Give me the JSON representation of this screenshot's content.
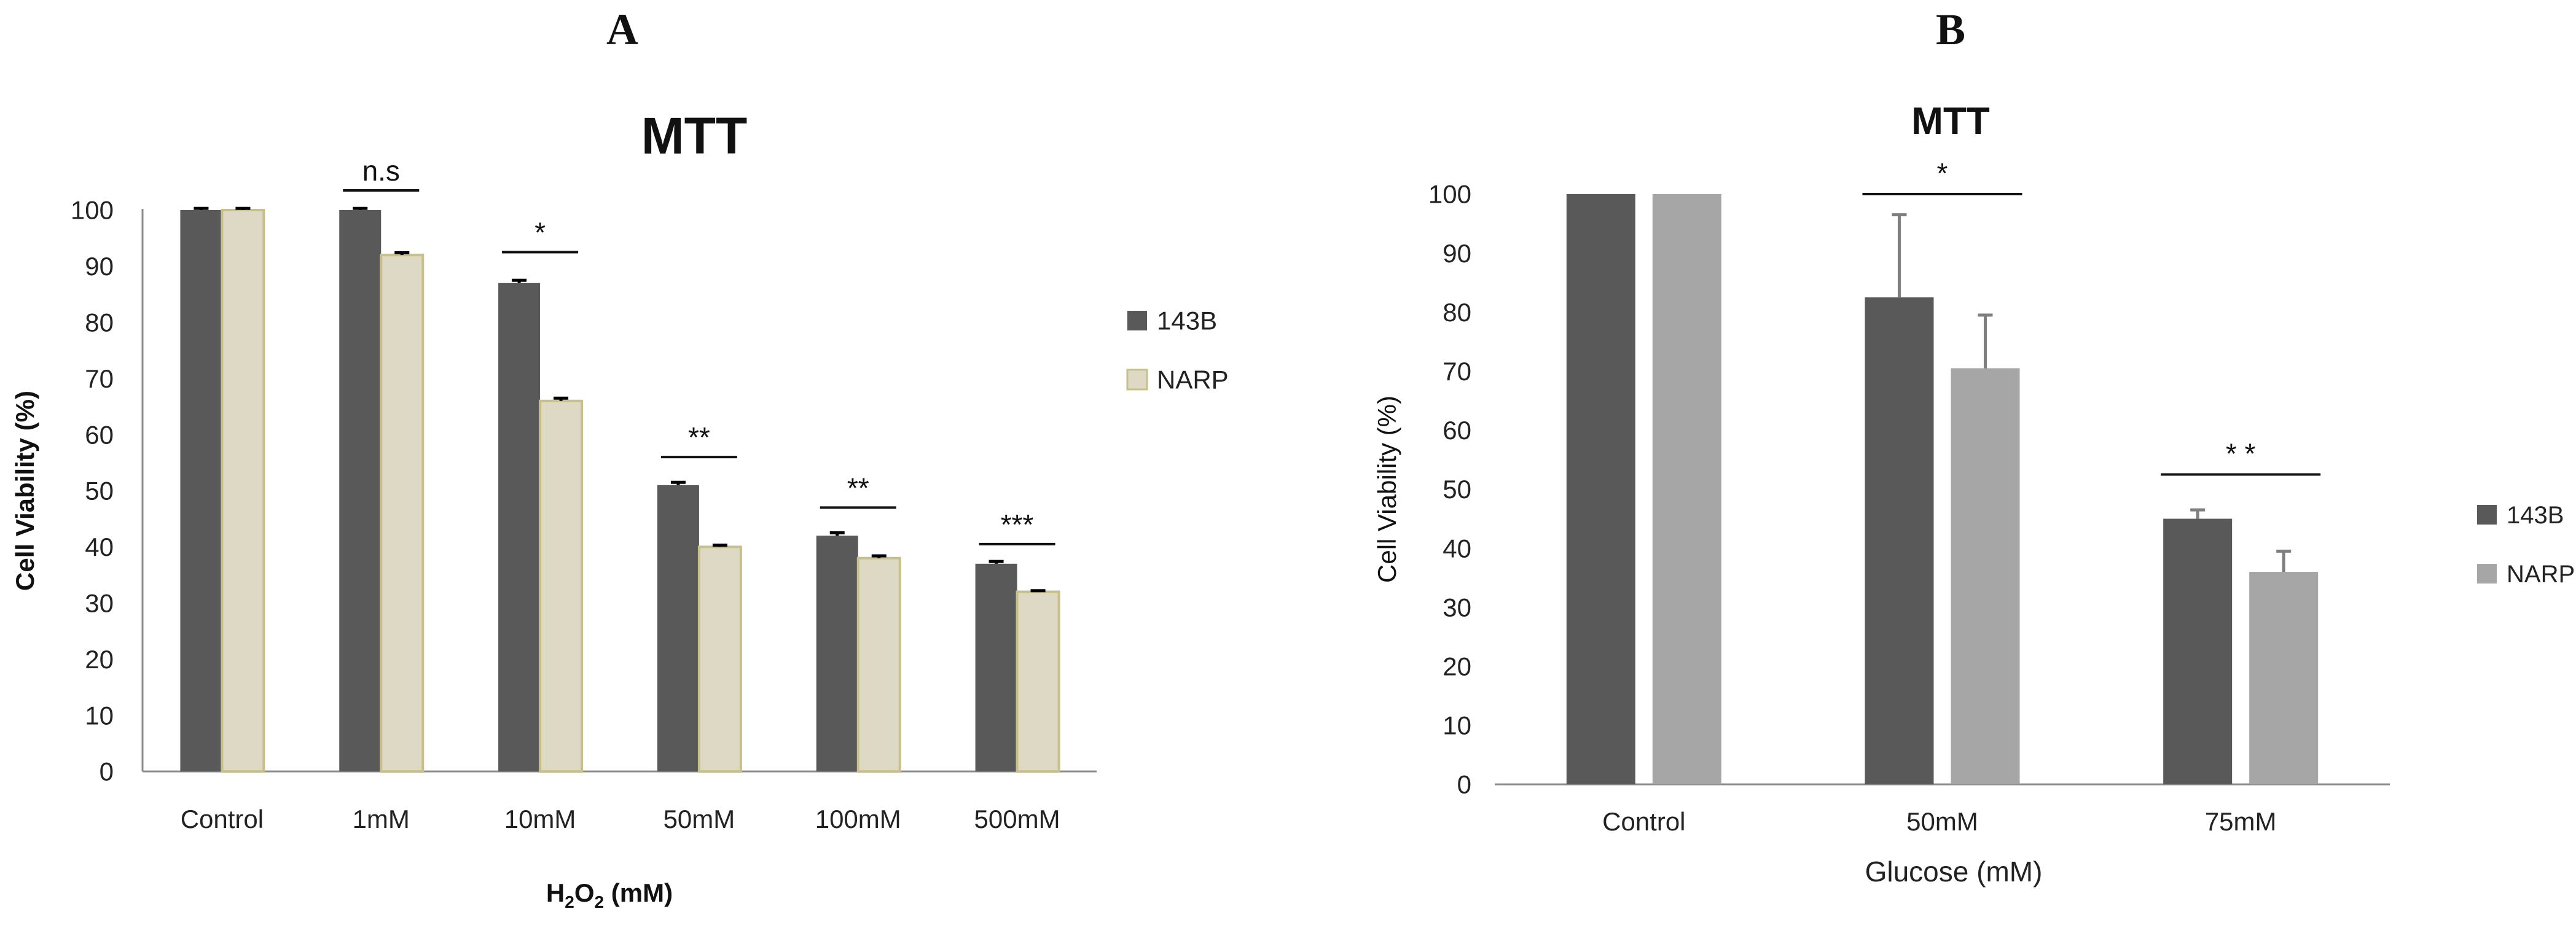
{
  "panels": {
    "a": {
      "label": "A"
    },
    "b": {
      "label": "B"
    }
  },
  "chart_data": [
    {
      "type": "bar",
      "title": "MTT",
      "xlabel_main": "H",
      "xlabel_sub": "2",
      "xlabel_main2": "O",
      "xlabel_sub2": "2",
      "xlabel_tail": " (mM)",
      "ylabel": "Cell Viability (%)",
      "ylim": [
        0,
        100
      ],
      "yticks": [
        0,
        10,
        20,
        30,
        40,
        50,
        60,
        70,
        80,
        90,
        100
      ],
      "categories": [
        "Control",
        "1mM",
        "10mM",
        "50mM",
        "100mM",
        "500mM"
      ],
      "series": [
        {
          "name": "143B",
          "values": [
            100,
            100,
            87,
            51,
            42,
            37
          ],
          "errors": [
            0.3,
            0.3,
            0.5,
            0.5,
            0.5,
            0.4
          ]
        },
        {
          "name": "NARP",
          "values": [
            100,
            92,
            66,
            40,
            38,
            32
          ],
          "errors": [
            0.3,
            0.4,
            0.5,
            0.3,
            0.4,
            0.2
          ]
        }
      ],
      "colors": {
        "143B": "#595959",
        "NARP": "#ddd9c4",
        "NARP_edge": "#c8c08a"
      },
      "significance": [
        {
          "category": "1mM",
          "label": "n.s",
          "y": 103.5
        },
        {
          "category": "10mM",
          "label": "*",
          "y": 92.5
        },
        {
          "category": "50mM",
          "label": "**",
          "y": 56
        },
        {
          "category": "100mM",
          "label": "**",
          "y": 47
        },
        {
          "category": "500mM",
          "label": "***",
          "y": 40.5
        }
      ],
      "legend_position": "right",
      "grid": false
    },
    {
      "type": "bar",
      "title": "MTT",
      "xlabel": "Glucose (mM)",
      "ylabel": "Cell Viability (%)",
      "ylim": [
        0,
        100
      ],
      "yticks": [
        0,
        10,
        20,
        30,
        40,
        50,
        60,
        70,
        80,
        90,
        100
      ],
      "categories": [
        "Control",
        "50mM",
        "75mM"
      ],
      "series": [
        {
          "name": "143B",
          "values": [
            100,
            82.5,
            45
          ],
          "errors": [
            0,
            14,
            1.5
          ]
        },
        {
          "name": "NARP",
          "values": [
            100,
            70.5,
            36
          ],
          "errors": [
            0,
            9,
            3.5
          ]
        }
      ],
      "colors": {
        "143B": "#595959",
        "NARP": "#a6a6a6"
      },
      "significance": [
        {
          "category": "50mM",
          "label": "*",
          "y": 100
        },
        {
          "category": "75mM",
          "label": "* *",
          "y": 52.5
        }
      ],
      "legend_position": "right",
      "grid": false
    }
  ]
}
